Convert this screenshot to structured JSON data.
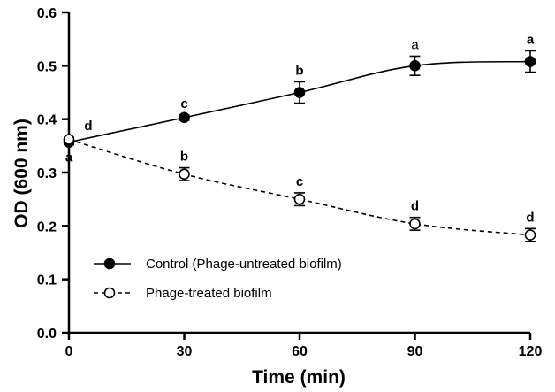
{
  "chart_data": {
    "type": "line",
    "xlabel": "Time (min)",
    "ylabel": "OD (600 nm)",
    "x": [
      0,
      30,
      60,
      90,
      120
    ],
    "xlim": [
      0,
      120
    ],
    "ylim": [
      0.0,
      0.6
    ],
    "xticks": [
      "0",
      "30",
      "60",
      "90",
      "120"
    ],
    "yticks": [
      "0.0",
      "0.1",
      "0.2",
      "0.3",
      "0.4",
      "0.5",
      "0.6"
    ],
    "grid": false,
    "legend_position": "bottom-left",
    "series": [
      {
        "name": "Control (Phage-untreated biofilm)",
        "marker": "filled-circle",
        "line_style": "solid",
        "color": "#000000",
        "values": [
          0.357,
          0.403,
          0.45,
          0.5,
          0.508
        ],
        "errors": [
          0.005,
          0.005,
          0.02,
          0.018,
          0.02
        ],
        "labels": [
          "a",
          "c",
          "b",
          "a",
          "a"
        ],
        "label_bold": [
          true,
          true,
          true,
          false,
          true
        ]
      },
      {
        "name": "Phage-treated biofilm",
        "marker": "open-circle",
        "line_style": "dashed",
        "color": "#000000",
        "values": [
          0.362,
          0.297,
          0.25,
          0.204,
          0.183
        ],
        "errors": [
          0.004,
          0.012,
          0.012,
          0.012,
          0.012
        ],
        "labels": [
          "d",
          "b",
          "c",
          "d",
          "d"
        ],
        "label_bold": [
          true,
          true,
          true,
          true,
          true
        ]
      }
    ]
  }
}
